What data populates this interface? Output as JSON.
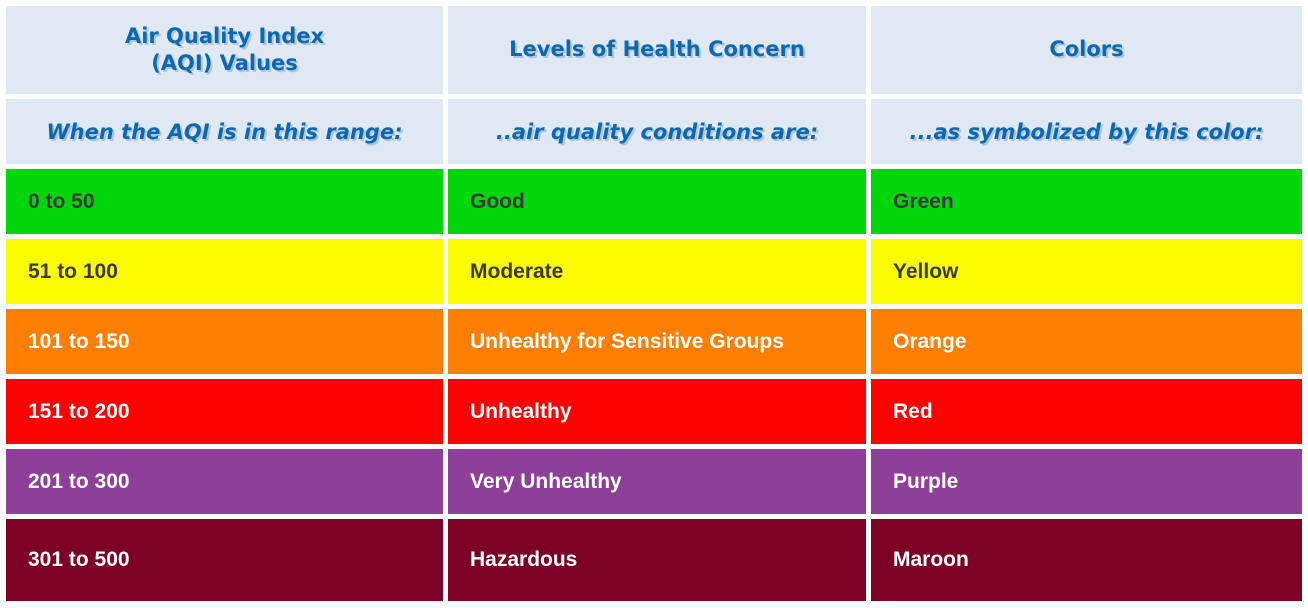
{
  "table": {
    "header_bg": "#dfe8f3",
    "header_text_color": "#0f68a9",
    "header": {
      "aqi_values": "Air Quality Index\n(AQI) Values",
      "health_concern": "Levels of Health Concern",
      "colors": "Colors"
    },
    "subheader": {
      "aqi_values": "When the AQI is in this range:",
      "health_concern": "..air quality conditions are:",
      "colors": "...as symbolized by this color:"
    },
    "rows": [
      {
        "range": "0 to 50",
        "level": "Good",
        "color_name": "Green",
        "hex": "#00d60a",
        "text_color": "#3a3a3a"
      },
      {
        "range": "51 to 100",
        "level": "Moderate",
        "color_name": "Yellow",
        "hex": "#fbfb00",
        "text_color": "#3a3a3a"
      },
      {
        "range": "101 to 150",
        "level": "Unhealthy for Sensitive Groups",
        "color_name": "Orange",
        "hex": "#fd7e01",
        "text_color": "#ffffff"
      },
      {
        "range": "151 to 200",
        "level": "Unhealthy",
        "color_name": "Red",
        "hex": "#fb0300",
        "text_color": "#ffffff"
      },
      {
        "range": "201 to 300",
        "level": "Very Unhealthy",
        "color_name": "Purple",
        "hex": "#8e3f97",
        "text_color": "#ffffff"
      },
      {
        "range": "301 to 500",
        "level": "Hazardous",
        "color_name": "Maroon",
        "hex": "#7d0124",
        "text_color": "#ffffff"
      }
    ]
  }
}
